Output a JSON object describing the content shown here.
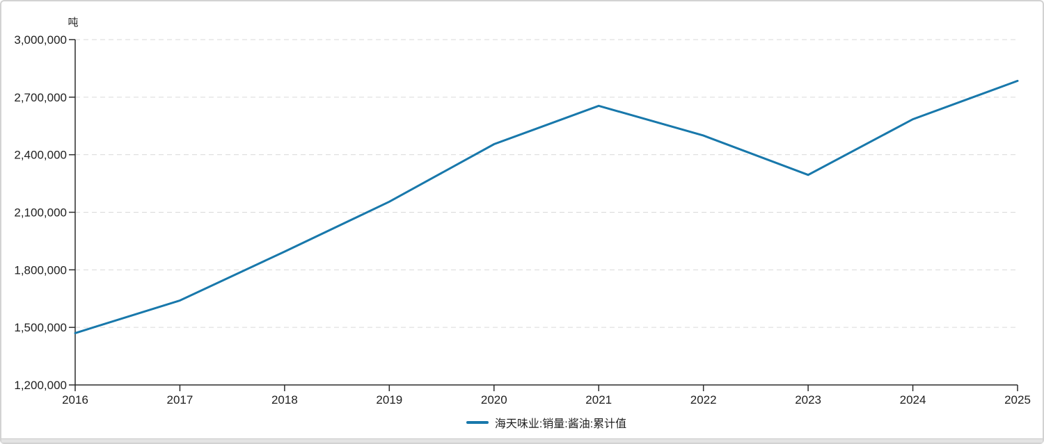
{
  "chart_data": {
    "type": "line",
    "title": "",
    "unit_label": "吨",
    "categories": [
      "2016",
      "2017",
      "2018",
      "2019",
      "2020",
      "2021",
      "2022",
      "2023",
      "2024",
      "2025"
    ],
    "series": [
      {
        "name": "海天味业:销量:酱油:累计值",
        "color": "#1878ab",
        "values": [
          1470000,
          1640000,
          1895000,
          2155000,
          2455000,
          2655000,
          2500000,
          2295000,
          2585000,
          2785000
        ]
      }
    ],
    "ylim": [
      1200000,
      3000000
    ],
    "y_ticks": [
      {
        "value": 1200000,
        "label": "1,200,000"
      },
      {
        "value": 1500000,
        "label": "1,500,000"
      },
      {
        "value": 1800000,
        "label": "1,800,000"
      },
      {
        "value": 2100000,
        "label": "2,100,000"
      },
      {
        "value": 2400000,
        "label": "2,400,000"
      },
      {
        "value": 2700000,
        "label": "2,700,000"
      },
      {
        "value": 3000000,
        "label": "3,000,000"
      }
    ],
    "xlabel": "",
    "ylabel": "吨",
    "grid": "horizontal-dashed",
    "legend_position": "bottom-center",
    "colors": {
      "axis": "#2b2b2b",
      "grid": "#d9d9d9",
      "text": "#1f1f1f",
      "accent": "#1878ab"
    }
  },
  "legend": {
    "label": "海天味业:销量:酱油:累计值"
  }
}
